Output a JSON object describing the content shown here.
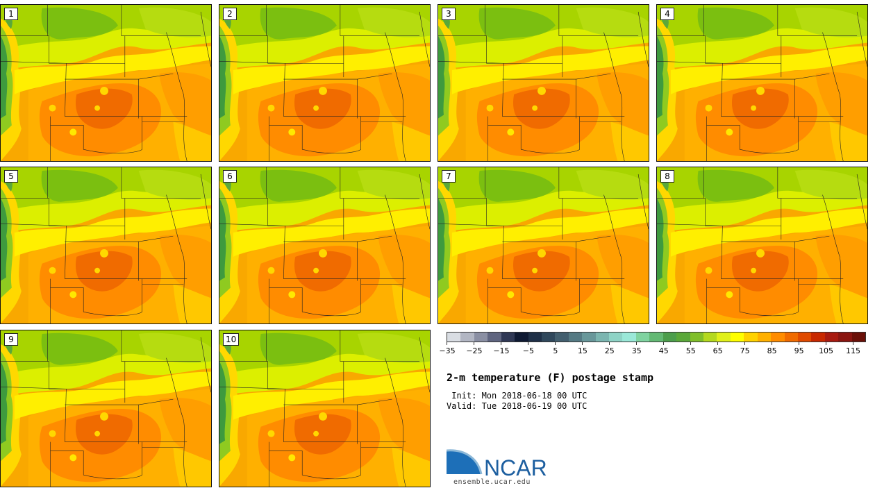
{
  "panels": [
    {
      "label": "1"
    },
    {
      "label": "2"
    },
    {
      "label": "3"
    },
    {
      "label": "4"
    },
    {
      "label": "5"
    },
    {
      "label": "6"
    },
    {
      "label": "7"
    },
    {
      "label": "8"
    },
    {
      "label": "9"
    },
    {
      "label": "10"
    }
  ],
  "colorbar": {
    "colors": [
      "#d9dde3",
      "#b2b6c3",
      "#8a8fa3",
      "#5f6580",
      "#2f3855",
      "#0f1a33",
      "#1f3048",
      "#30485c",
      "#435f6f",
      "#557a84",
      "#68979a",
      "#7bb5b0",
      "#8ed3c6",
      "#9ae8d8",
      "#7fd3a0",
      "#63b974",
      "#4c9e4c",
      "#5aa83a",
      "#80bf2a",
      "#b4d91e",
      "#e0f01a",
      "#ffff00",
      "#ffd200",
      "#ffb000",
      "#ff8c00",
      "#f06b00",
      "#e04a00",
      "#c82800",
      "#a81a10",
      "#8a1510",
      "#6a1008"
    ],
    "tick_labels": [
      "−35",
      "−25",
      "−15",
      "−5",
      "5",
      "15",
      "25",
      "35",
      "45",
      "55",
      "65",
      "75",
      "85",
      "95",
      "105",
      "115"
    ]
  },
  "title": "2-m temperature (F) postage stamp",
  "init": " Init: Mon 2018-06-18 00 UTC",
  "valid": "Valid: Tue 2018-06-19 00 UTC",
  "logo": {
    "text": "NCAR",
    "url": "ensemble.ucar.edu"
  }
}
